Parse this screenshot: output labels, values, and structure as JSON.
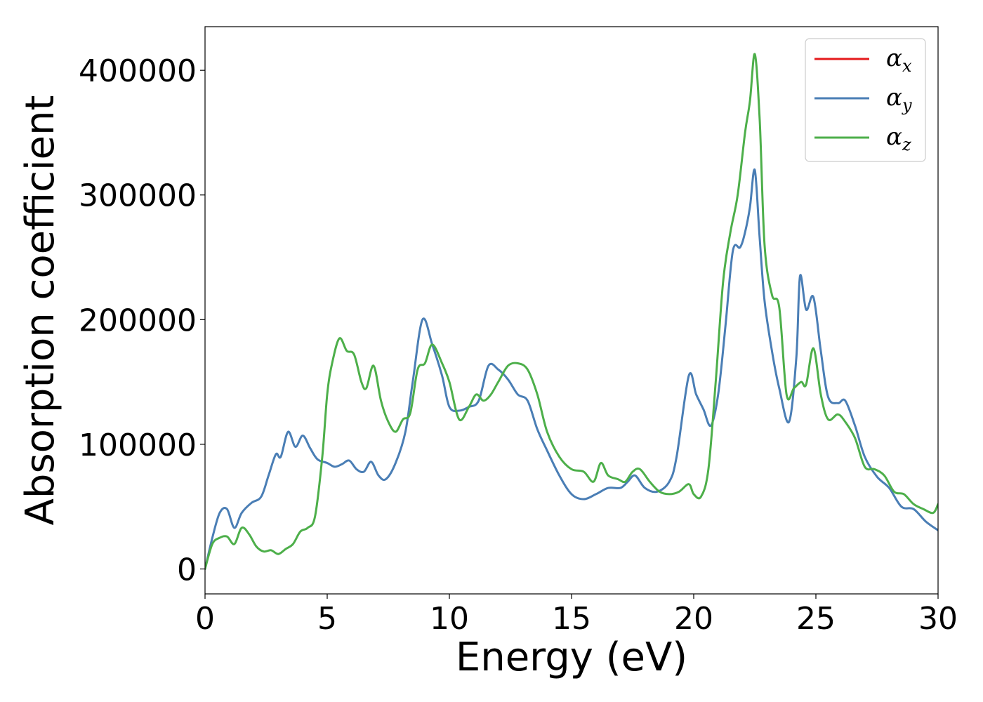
{
  "chart_data": {
    "type": "line",
    "title": "",
    "xlabel": "Energy (eV)",
    "ylabel": "Absorption coefficient",
    "xlim": [
      0,
      30
    ],
    "ylim": [
      -20000,
      435000
    ],
    "xticks": [
      0,
      5,
      10,
      15,
      20,
      25,
      30
    ],
    "yticks": [
      0,
      100000,
      200000,
      300000,
      400000
    ],
    "xtick_labels": [
      "0",
      "5",
      "10",
      "15",
      "20",
      "25",
      "30"
    ],
    "ytick_labels": [
      "0",
      "100000",
      "200000",
      "300000",
      "400000"
    ],
    "grid": false,
    "legend_position": "top-right",
    "series": [
      {
        "name": "αx",
        "symbol": "α",
        "sub": "x",
        "color": "#e41a1c",
        "draw": false,
        "x": [
          0,
          0.3,
          0.6,
          0.9,
          1.2,
          1.5,
          1.9,
          2.3,
          2.6,
          2.9,
          3.1,
          3.4,
          3.7,
          4.0,
          4.3,
          4.6,
          5.0,
          5.3,
          5.6,
          5.9,
          6.2,
          6.5,
          6.8,
          7.1,
          7.4,
          7.8,
          8.2,
          8.5,
          8.9,
          9.3,
          9.7,
          10.0,
          10.4,
          10.8,
          11.2,
          11.6,
          12.0,
          12.4,
          12.8,
          13.2,
          13.6,
          14.0,
          14.5,
          15.0,
          15.5,
          16.0,
          16.5,
          17.0,
          17.3,
          17.6,
          18.0,
          18.5,
          19.0,
          19.3,
          19.8,
          20.1,
          20.4,
          20.7,
          21.0,
          21.3,
          21.6,
          21.9,
          22.1,
          22.3,
          22.5,
          22.7,
          22.9,
          23.2,
          23.5,
          23.9,
          24.2,
          24.35,
          24.6,
          24.9,
          25.2,
          25.5,
          25.9,
          26.2,
          26.6,
          27.0,
          27.5,
          28.0,
          28.5,
          29.0,
          29.5,
          30.0
        ],
        "y": [
          0,
          25000,
          45000,
          48000,
          33000,
          45000,
          53000,
          58000,
          75000,
          92000,
          90000,
          110000,
          98000,
          107000,
          97000,
          88000,
          85000,
          82000,
          84000,
          87000,
          80000,
          78000,
          86000,
          75000,
          72000,
          85000,
          110000,
          150000,
          200000,
          180000,
          155000,
          130000,
          127000,
          130000,
          135000,
          163000,
          160000,
          152000,
          140000,
          135000,
          112000,
          95000,
          75000,
          60000,
          56000,
          60000,
          65000,
          65000,
          70000,
          75000,
          65000,
          62000,
          70000,
          90000,
          155000,
          140000,
          128000,
          115000,
          140000,
          195000,
          255000,
          258000,
          270000,
          290000,
          320000,
          265000,
          215000,
          175000,
          145000,
          118000,
          170000,
          235000,
          208000,
          218000,
          175000,
          138000,
          133000,
          135000,
          115000,
          90000,
          74000,
          65000,
          50000,
          48000,
          38000,
          31000
        ]
      },
      {
        "name": "αy",
        "symbol": "α",
        "sub": "y",
        "color": "#4a7eb5",
        "draw": true,
        "x": [
          0,
          0.3,
          0.6,
          0.9,
          1.2,
          1.5,
          1.9,
          2.3,
          2.6,
          2.9,
          3.1,
          3.4,
          3.7,
          4.0,
          4.3,
          4.6,
          5.0,
          5.3,
          5.6,
          5.9,
          6.2,
          6.5,
          6.8,
          7.1,
          7.4,
          7.8,
          8.2,
          8.5,
          8.9,
          9.3,
          9.7,
          10.0,
          10.4,
          10.8,
          11.2,
          11.6,
          12.0,
          12.4,
          12.8,
          13.2,
          13.6,
          14.0,
          14.5,
          15.0,
          15.5,
          16.0,
          16.5,
          17.0,
          17.3,
          17.6,
          18.0,
          18.5,
          19.0,
          19.3,
          19.8,
          20.1,
          20.4,
          20.7,
          21.0,
          21.3,
          21.6,
          21.9,
          22.1,
          22.3,
          22.5,
          22.7,
          22.9,
          23.2,
          23.5,
          23.9,
          24.2,
          24.35,
          24.6,
          24.9,
          25.2,
          25.5,
          25.9,
          26.2,
          26.6,
          27.0,
          27.5,
          28.0,
          28.5,
          29.0,
          29.5,
          30.0
        ],
        "y": [
          0,
          25000,
          45000,
          48000,
          33000,
          45000,
          53000,
          58000,
          75000,
          92000,
          90000,
          110000,
          98000,
          107000,
          97000,
          88000,
          85000,
          82000,
          84000,
          87000,
          80000,
          78000,
          86000,
          75000,
          72000,
          85000,
          110000,
          150000,
          200000,
          180000,
          155000,
          130000,
          127000,
          130000,
          135000,
          163000,
          160000,
          152000,
          140000,
          135000,
          112000,
          95000,
          75000,
          60000,
          56000,
          60000,
          65000,
          65000,
          70000,
          75000,
          65000,
          62000,
          70000,
          90000,
          155000,
          140000,
          128000,
          115000,
          140000,
          195000,
          255000,
          258000,
          270000,
          290000,
          320000,
          265000,
          215000,
          175000,
          145000,
          118000,
          170000,
          235000,
          208000,
          218000,
          175000,
          138000,
          133000,
          135000,
          115000,
          90000,
          74000,
          65000,
          50000,
          48000,
          38000,
          31000
        ]
      },
      {
        "name": "αz",
        "symbol": "α",
        "sub": "z",
        "color": "#4daf4a",
        "draw": true,
        "x": [
          0,
          0.3,
          0.6,
          0.9,
          1.2,
          1.5,
          1.8,
          2.1,
          2.4,
          2.7,
          3.0,
          3.3,
          3.6,
          3.9,
          4.2,
          4.5,
          4.8,
          5.0,
          5.2,
          5.5,
          5.8,
          6.1,
          6.4,
          6.6,
          6.9,
          7.2,
          7.5,
          7.8,
          8.1,
          8.4,
          8.7,
          9.0,
          9.3,
          9.7,
          10.0,
          10.4,
          10.8,
          11.1,
          11.4,
          11.7,
          12.0,
          12.4,
          12.8,
          13.2,
          13.6,
          14.0,
          14.5,
          15.0,
          15.5,
          15.9,
          16.2,
          16.5,
          16.9,
          17.2,
          17.5,
          17.8,
          18.2,
          18.6,
          19.0,
          19.4,
          19.8,
          20.0,
          20.3,
          20.6,
          20.9,
          21.2,
          21.5,
          21.8,
          22.1,
          22.3,
          22.5,
          22.7,
          22.9,
          23.2,
          23.5,
          23.8,
          24.1,
          24.4,
          24.6,
          24.9,
          25.2,
          25.5,
          25.9,
          26.2,
          26.6,
          27.0,
          27.4,
          27.8,
          28.2,
          28.6,
          29.0,
          29.4,
          29.8,
          30.0
        ],
        "y": [
          0,
          20000,
          25000,
          26000,
          20000,
          33000,
          28000,
          18000,
          14000,
          15000,
          12000,
          16000,
          20000,
          30000,
          33000,
          42000,
          90000,
          140000,
          165000,
          185000,
          175000,
          172000,
          150000,
          145000,
          163000,
          135000,
          118000,
          110000,
          120000,
          125000,
          160000,
          165000,
          180000,
          165000,
          150000,
          120000,
          130000,
          140000,
          135000,
          140000,
          150000,
          163000,
          165000,
          160000,
          140000,
          110000,
          90000,
          80000,
          78000,
          70000,
          85000,
          75000,
          72000,
          70000,
          78000,
          80000,
          70000,
          62000,
          60000,
          62000,
          68000,
          60000,
          58000,
          80000,
          150000,
          230000,
          270000,
          300000,
          350000,
          375000,
          413000,
          360000,
          260000,
          220000,
          210000,
          140000,
          145000,
          150000,
          148000,
          177000,
          140000,
          120000,
          124000,
          118000,
          105000,
          82000,
          80000,
          75000,
          62000,
          60000,
          52000,
          48000,
          45000,
          52000
        ]
      }
    ]
  }
}
